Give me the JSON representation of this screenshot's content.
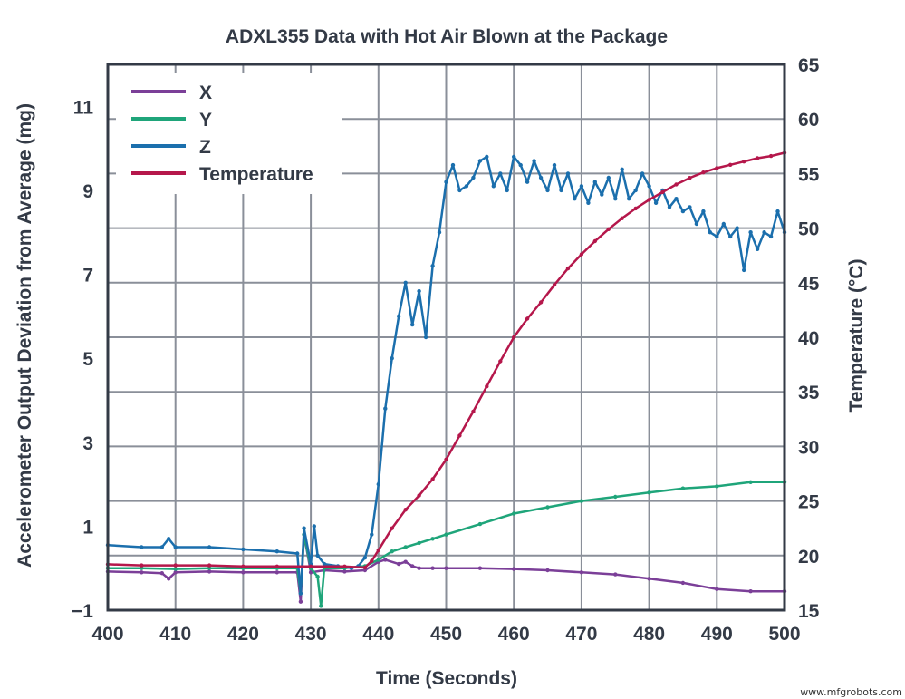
{
  "chart_data": {
    "type": "line",
    "title": "ADXL355 Data with Hot Air Blown at the Package",
    "xlabel": "Time (Seconds)",
    "ylabel": "Accelerometer Output Deviation from Average (mg)",
    "y2label": "Temperature (°C)",
    "xlim": [
      400,
      500
    ],
    "ylim": [
      -1,
      12
    ],
    "y2lim": [
      15,
      65
    ],
    "xticks": [
      "400",
      "410",
      "420",
      "430",
      "440",
      "450",
      "460",
      "470",
      "480",
      "490",
      "500"
    ],
    "yticks": [
      "−1",
      "1",
      "3",
      "5",
      "7",
      "9",
      "11"
    ],
    "y2ticks": [
      "15",
      "20",
      "25",
      "30",
      "35",
      "40",
      "45",
      "50",
      "55",
      "60",
      "65"
    ],
    "grid": true,
    "legend": "top-left",
    "series": [
      {
        "name": "X",
        "axis": "left",
        "color": "#7b3f98",
        "x": [
          400,
          405,
          408,
          409,
          410,
          415,
          420,
          425,
          428,
          428.5,
          429,
          430,
          432,
          435,
          438,
          440,
          441,
          443,
          444,
          445,
          446,
          448,
          450,
          455,
          460,
          465,
          470,
          475,
          480,
          485,
          490,
          495,
          500
        ],
        "y": [
          -0.08,
          -0.1,
          -0.12,
          -0.25,
          -0.1,
          -0.08,
          -0.1,
          -0.1,
          -0.1,
          -0.8,
          0.8,
          -0.1,
          -0.05,
          -0.08,
          -0.05,
          0.15,
          0.2,
          0.1,
          0.15,
          0.05,
          0.0,
          0.0,
          0.0,
          0.0,
          -0.02,
          -0.05,
          -0.1,
          -0.15,
          -0.25,
          -0.35,
          -0.5,
          -0.55,
          -0.55
        ]
      },
      {
        "name": "Y",
        "axis": "left",
        "color": "#1fa57a",
        "x": [
          400,
          405,
          410,
          415,
          420,
          425,
          428,
          428.5,
          429,
          430,
          431,
          431.5,
          432,
          435,
          438,
          440,
          442,
          444,
          446,
          448,
          450,
          455,
          460,
          465,
          470,
          475,
          480,
          485,
          490,
          495,
          500
        ],
        "y": [
          0.0,
          0.0,
          -0.02,
          0.0,
          0.0,
          0.0,
          0.0,
          -0.6,
          0.8,
          0.0,
          -0.2,
          -0.9,
          0.0,
          0.0,
          0.05,
          0.2,
          0.4,
          0.5,
          0.6,
          0.7,
          0.8,
          1.05,
          1.3,
          1.45,
          1.6,
          1.7,
          1.8,
          1.9,
          1.95,
          2.05,
          2.05
        ]
      },
      {
        "name": "Z",
        "axis": "left",
        "color": "#1b6fad",
        "x": [
          400,
          405,
          408,
          409,
          410,
          415,
          420,
          425,
          428,
          428.5,
          429,
          430,
          430.5,
          431,
          432,
          434,
          436,
          437,
          438,
          439,
          440,
          441,
          442,
          443,
          444,
          445,
          446,
          447,
          448,
          449,
          450,
          451,
          452,
          453,
          454,
          455,
          456,
          457,
          458,
          459,
          460,
          461,
          462,
          463,
          464,
          465,
          466,
          467,
          468,
          469,
          470,
          471,
          472,
          473,
          474,
          475,
          476,
          477,
          478,
          479,
          480,
          481,
          482,
          483,
          484,
          485,
          486,
          487,
          488,
          489,
          490,
          491,
          492,
          493,
          494,
          495,
          496,
          497,
          498,
          499,
          500
        ],
        "y": [
          0.55,
          0.5,
          0.5,
          0.7,
          0.5,
          0.5,
          0.45,
          0.4,
          0.35,
          -0.6,
          0.95,
          0.1,
          1.0,
          0.3,
          0.1,
          0.05,
          0.0,
          0.05,
          0.25,
          0.8,
          2.0,
          3.8,
          5.0,
          6.0,
          6.8,
          5.8,
          6.6,
          5.5,
          7.2,
          8.0,
          9.2,
          9.6,
          9.0,
          9.1,
          9.3,
          9.7,
          9.8,
          9.1,
          9.4,
          9.0,
          9.8,
          9.6,
          9.2,
          9.7,
          9.3,
          9.0,
          9.6,
          9.0,
          9.4,
          8.8,
          9.1,
          8.7,
          9.2,
          8.9,
          9.3,
          8.8,
          9.5,
          8.8,
          9.0,
          9.4,
          9.1,
          8.7,
          9.0,
          8.6,
          8.8,
          8.5,
          8.6,
          8.2,
          8.5,
          8.0,
          7.9,
          8.2,
          7.9,
          8.1,
          7.1,
          8.0,
          7.6,
          8.0,
          7.9,
          8.5,
          8.0
        ]
      },
      {
        "name": "Temperature",
        "axis": "right",
        "color": "#b5174b",
        "x": [
          400,
          405,
          410,
          415,
          420,
          425,
          430,
          435,
          438,
          439,
          440,
          442,
          444,
          446,
          448,
          450,
          452,
          454,
          456,
          458,
          460,
          462,
          464,
          466,
          468,
          470,
          472,
          474,
          476,
          478,
          480,
          482,
          484,
          486,
          488,
          490,
          492,
          494,
          496,
          498,
          500
        ],
        "y": [
          19.2,
          19.1,
          19.1,
          19.1,
          19.0,
          19.0,
          19.0,
          19.0,
          18.9,
          19.5,
          20.5,
          22.5,
          24.2,
          25.5,
          27.0,
          28.8,
          31.0,
          33.2,
          35.5,
          37.8,
          40.0,
          41.7,
          43.2,
          44.8,
          46.3,
          47.6,
          48.8,
          49.9,
          50.9,
          51.8,
          52.6,
          53.3,
          54.0,
          54.6,
          55.1,
          55.5,
          55.8,
          56.1,
          56.4,
          56.6,
          56.9
        ]
      }
    ]
  },
  "watermark": "www.mfgrobots.com"
}
